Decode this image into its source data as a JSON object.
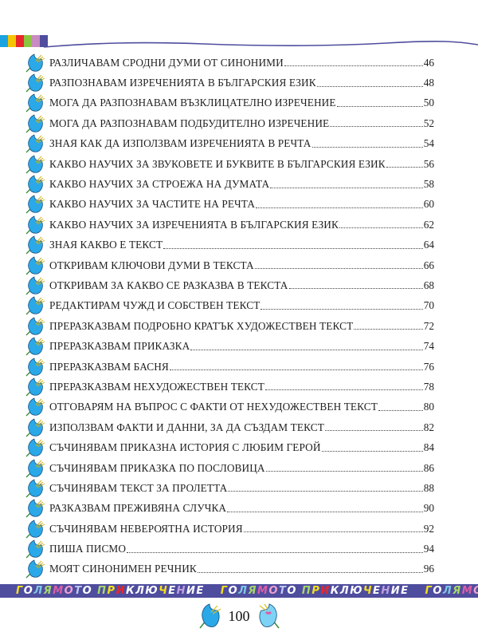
{
  "header": {
    "color_strip": [
      "#1aa3e0",
      "#f5c400",
      "#e8262c",
      "#8cc63f",
      "#c98bc0",
      "#4f4d9e"
    ]
  },
  "toc": [
    {
      "title": "РАЗЛИЧАВАМ СРОДНИ ДУМИ ОТ СИНОНИМИ",
      "page": "46"
    },
    {
      "title": "РАЗПОЗНАВАМ ИЗРЕЧЕНИЯТА В БЪЛГАРСКИЯ ЕЗИК",
      "page": "48"
    },
    {
      "title": "МОГА ДА РАЗПОЗНАВАМ ВЪЗКЛИЦАТЕЛНО ИЗРЕЧЕНИЕ",
      "page": "50"
    },
    {
      "title": "МОГА ДА РАЗПОЗНАВАМ ПОДБУДИТЕЛНО ИЗРЕЧЕНИЕ",
      "page": "52"
    },
    {
      "title": "ЗНАЯ КАК ДА ИЗПОЛЗВАМ ИЗРЕЧЕНИЯТА В РЕЧТА",
      "page": "54"
    },
    {
      "title": "КАКВО НАУЧИХ ЗА ЗВУКОВЕТЕ И БУКВИТЕ В БЪЛГАРСКИЯ ЕЗИК",
      "page": "56"
    },
    {
      "title": "КАКВО НАУЧИХ ЗА СТРОЕЖА НА ДУМАТА",
      "page": "58"
    },
    {
      "title": "КАКВО НАУЧИХ ЗА ЧАСТИТЕ НА РЕЧТА",
      "page": "60"
    },
    {
      "title": "КАКВО НАУЧИХ ЗА ИЗРЕЧЕНИЯТА В БЪЛГАРСКИЯ ЕЗИК",
      "page": "62"
    },
    {
      "title": "ЗНАЯ КАКВО Е ТЕКСТ",
      "page": "64"
    },
    {
      "title": "ОТКРИВАМ КЛЮЧОВИ ДУМИ В ТЕКСТА",
      "page": "66"
    },
    {
      "title": "ОТКРИВАМ ЗА КАКВО СЕ РАЗКАЗВА В ТЕКСТА",
      "page": "68"
    },
    {
      "title": "РЕДАКТИРАМ ЧУЖД И СОБСТВЕН ТЕКСТ",
      "page": "70"
    },
    {
      "title": "ПРЕРАЗКАЗВАМ ПОДРОБНО КРАТЪК ХУДОЖЕСТВЕН ТЕКСТ",
      "page": "72"
    },
    {
      "title": "ПРЕРАЗКАЗВАМ ПРИКАЗКА",
      "page": "74"
    },
    {
      "title": "ПРЕРАЗКАЗВАМ БАСНЯ",
      "page": "76"
    },
    {
      "title": "ПРЕРАЗКАЗВАМ НЕХУДОЖЕСТВЕН ТЕКСТ",
      "page": "78"
    },
    {
      "title": "ОТГОВАРЯМ НА ВЪПРОС С ФАКТИ ОТ НЕХУДОЖЕСТВЕН ТЕКСТ",
      "page": "80"
    },
    {
      "title": "ИЗПОЛЗВАМ ФАКТИ И ДАННИ, ЗА ДА СЪЗДАМ ТЕКСТ",
      "page": "82"
    },
    {
      "title": "СЪЧИНЯВАМ ПРИКАЗНА ИСТОРИЯ С ЛЮБИМ ГЕРОЙ",
      "page": "84"
    },
    {
      "title": "СЪЧИНЯВАМ ПРИКАЗКА ПО ПОСЛОВИЦА",
      "page": "86"
    },
    {
      "title": "СЪЧИНЯВАМ ТЕКСТ ЗА ПРОЛЕТТА",
      "page": "88"
    },
    {
      "title": "РАЗКАЗВАМ ПРЕЖИВЯНА СЛУЧКА",
      "page": "90"
    },
    {
      "title": "СЪЧИНЯВАМ НЕВЕРОЯТНА ИСТОРИЯ",
      "page": "92"
    },
    {
      "title": "ПИША ПИСМО",
      "page": "94"
    },
    {
      "title": "МОЯТ СИНОНИМЕН РЕЧНИК",
      "page": "96"
    }
  ],
  "banner": {
    "phrases": [
      "ГОЛЯМОТО ПРИКЛЮЧЕНИЕ",
      "ГОЛЯМОТО ПРИКЛЮЧЕНИЕ",
      "ГОЛЯМОТО"
    ],
    "background": "#4f4d9e",
    "letter_colors": [
      "#f5e11a",
      "#ffffff",
      "#7ec8e3",
      "#a7d86b",
      "#e25ca8",
      "#f0a0d0",
      "#c0c8f0",
      "#ffffff",
      "#a7d86b",
      "#f5e11a",
      "#e8262c",
      "#ffffff",
      "#ffffff",
      "#ffffff",
      "#f5e11a",
      "#ffffff",
      "#c0a0e0",
      "#ffffff",
      "#ffffff",
      "#e8262c",
      "#ffffff"
    ]
  },
  "footer": {
    "page_number": "100",
    "icons": [
      "flower-icon",
      "flower-icon"
    ]
  },
  "icon_color": "#2aa8e8"
}
